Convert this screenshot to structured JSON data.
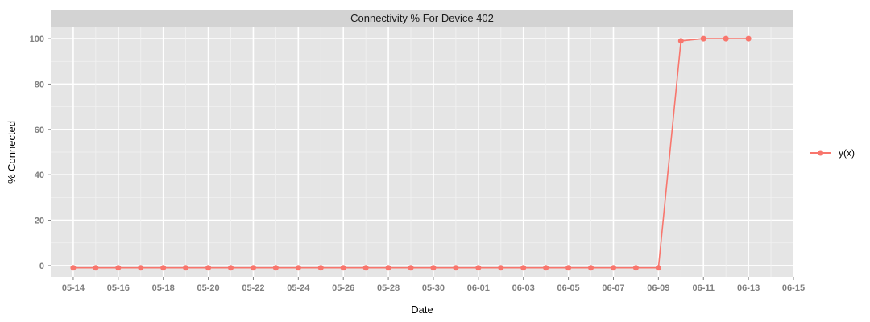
{
  "chart_data": {
    "type": "line",
    "title": "Connectivity % For Device 402",
    "xlabel": "Date",
    "ylabel": "% Connected",
    "x_ticks": [
      "05-14",
      "05-16",
      "05-18",
      "05-20",
      "05-22",
      "05-24",
      "05-26",
      "05-28",
      "05-30",
      "06-01",
      "06-03",
      "06-05",
      "06-07",
      "06-09",
      "06-11",
      "06-13",
      "06-15"
    ],
    "y_ticks": [
      0,
      20,
      40,
      60,
      80,
      100
    ],
    "xlim": [
      "2014-05-13",
      "2014-06-15"
    ],
    "ylim": [
      -5,
      105
    ],
    "grid": true,
    "legend_position": "right",
    "colors": {
      "panel": "#e5e5e5",
      "grid": "#ffffff",
      "series": "#f8766d",
      "strip": "#d3d3d3"
    },
    "series": [
      {
        "name": "y(x)",
        "x": [
          "2014-05-14",
          "2014-05-15",
          "2014-05-16",
          "2014-05-17",
          "2014-05-18",
          "2014-05-19",
          "2014-05-20",
          "2014-05-21",
          "2014-05-22",
          "2014-05-23",
          "2014-05-24",
          "2014-05-25",
          "2014-05-26",
          "2014-05-27",
          "2014-05-28",
          "2014-05-29",
          "2014-05-30",
          "2014-05-31",
          "2014-06-01",
          "2014-06-02",
          "2014-06-03",
          "2014-06-04",
          "2014-06-05",
          "2014-06-06",
          "2014-06-07",
          "2014-06-08",
          "2014-06-09",
          "2014-06-10",
          "2014-06-11",
          "2014-06-12",
          "2014-06-13"
        ],
        "y": [
          -1,
          -1,
          -1,
          -1,
          -1,
          -1,
          -1,
          -1,
          -1,
          -1,
          -1,
          -1,
          -1,
          -1,
          -1,
          -1,
          -1,
          -1,
          -1,
          -1,
          -1,
          -1,
          -1,
          -1,
          -1,
          -1,
          -1,
          99,
          100,
          100,
          100
        ]
      }
    ]
  }
}
